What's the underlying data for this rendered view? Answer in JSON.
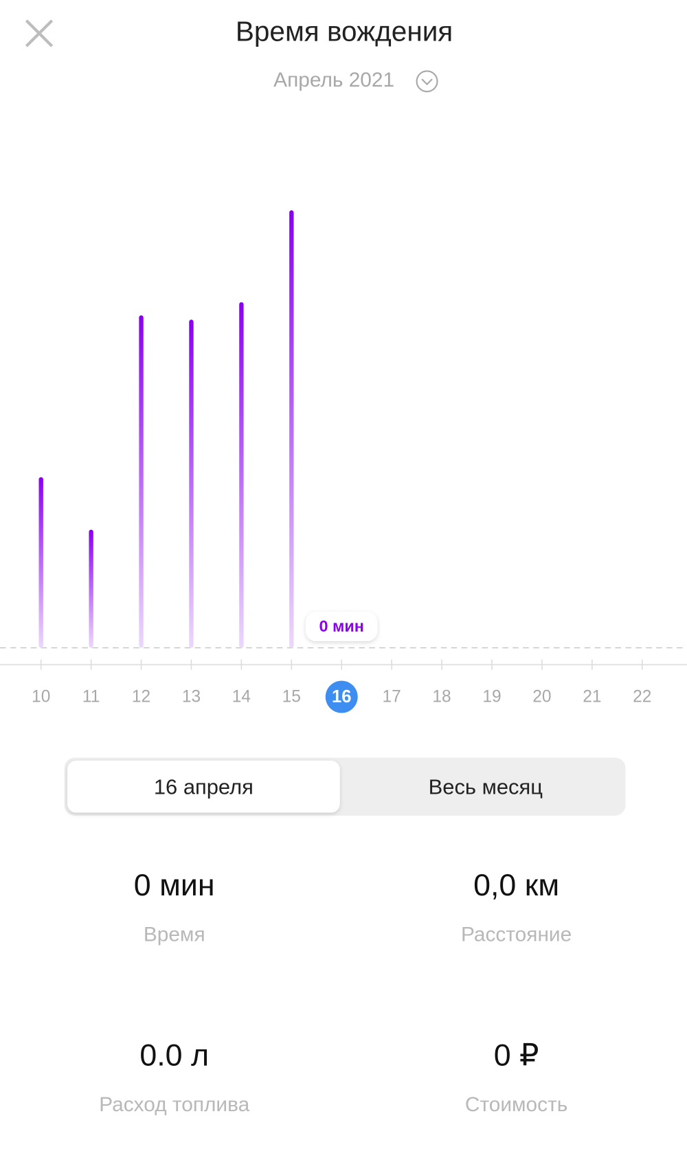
{
  "header": {
    "title": "Время вождения",
    "period": "Апрель 2021"
  },
  "chart_data": {
    "type": "bar",
    "categories": [
      "10",
      "11",
      "12",
      "13",
      "14",
      "15",
      "16",
      "17",
      "18",
      "19",
      "20",
      "21",
      "22"
    ],
    "values": [
      39,
      27,
      76,
      75,
      79,
      100,
      0,
      null,
      null,
      null,
      null,
      null,
      null
    ],
    "color": "#8a00f0",
    "selected": 6,
    "tooltip": "0 мин"
  },
  "tabs": [
    "16 апреля",
    "Весь месяц"
  ],
  "active_tab": 0,
  "stats": [
    {
      "value": "0 мин",
      "label": "Время"
    },
    {
      "value": "0,0 км",
      "label": "Расстояние"
    },
    {
      "value": "0.0 л",
      "label": "Расход топлива"
    },
    {
      "value": "0 ₽",
      "label": "Стоимость"
    }
  ]
}
